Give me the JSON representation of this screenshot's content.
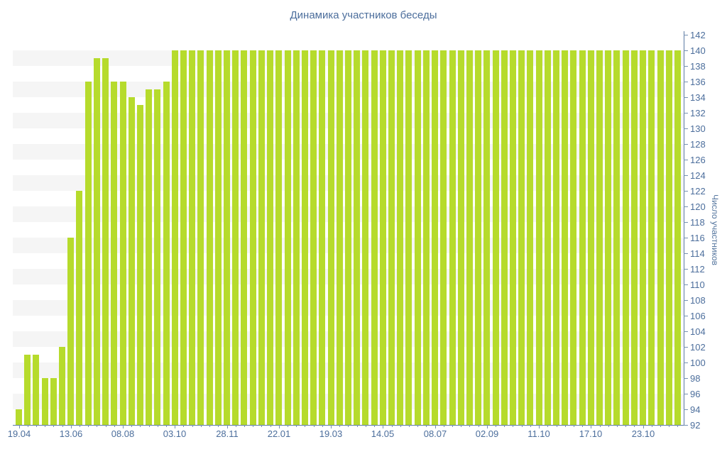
{
  "chart_data": {
    "type": "bar",
    "title": "Динамика участников беседы",
    "xlabel": "",
    "ylabel": "Число участников",
    "ylim": [
      92,
      142
    ],
    "ytick_step": 2,
    "y_tick_labels": [
      "92",
      "94",
      "96",
      "98",
      "100",
      "102",
      "104",
      "106",
      "108",
      "110",
      "112",
      "114",
      "116",
      "118",
      "120",
      "122",
      "124",
      "126",
      "128",
      "130",
      "132",
      "134",
      "136",
      "138",
      "140",
      "142"
    ],
    "x_tick_labels": [
      "19.04",
      "13.06",
      "08.08",
      "03.10",
      "28.11",
      "22.01",
      "19.03",
      "14.05",
      "08.07",
      "02.09",
      "11.10",
      "17.10",
      "23.10"
    ],
    "label_every_n_bars": 6,
    "grid": "alternating horizontal bands, no vertical gridlines, y-axis on right side",
    "legend": null,
    "values": [
      94,
      101,
      101,
      98,
      98,
      102,
      116,
      122,
      136,
      139,
      139,
      136,
      136,
      134,
      133,
      135,
      135,
      136,
      140,
      140,
      140,
      140,
      140,
      140,
      140,
      140,
      140,
      140,
      140,
      140,
      140,
      140,
      140,
      140,
      140,
      140,
      140,
      140,
      140,
      140,
      140,
      140,
      140,
      140,
      140,
      140,
      140,
      140,
      140,
      140,
      140,
      140,
      140,
      140,
      140,
      140,
      140,
      140,
      140,
      140,
      140,
      140,
      140,
      140,
      140,
      140,
      140,
      140,
      140,
      140,
      140,
      140,
      140,
      140,
      140,
      140,
      140
    ],
    "colors": {
      "bar": "#b6db2c",
      "band": "#f5f5f5",
      "axis": "#5c7aa3",
      "tick": "#7590b3",
      "text": "#4c6e9c"
    }
  }
}
